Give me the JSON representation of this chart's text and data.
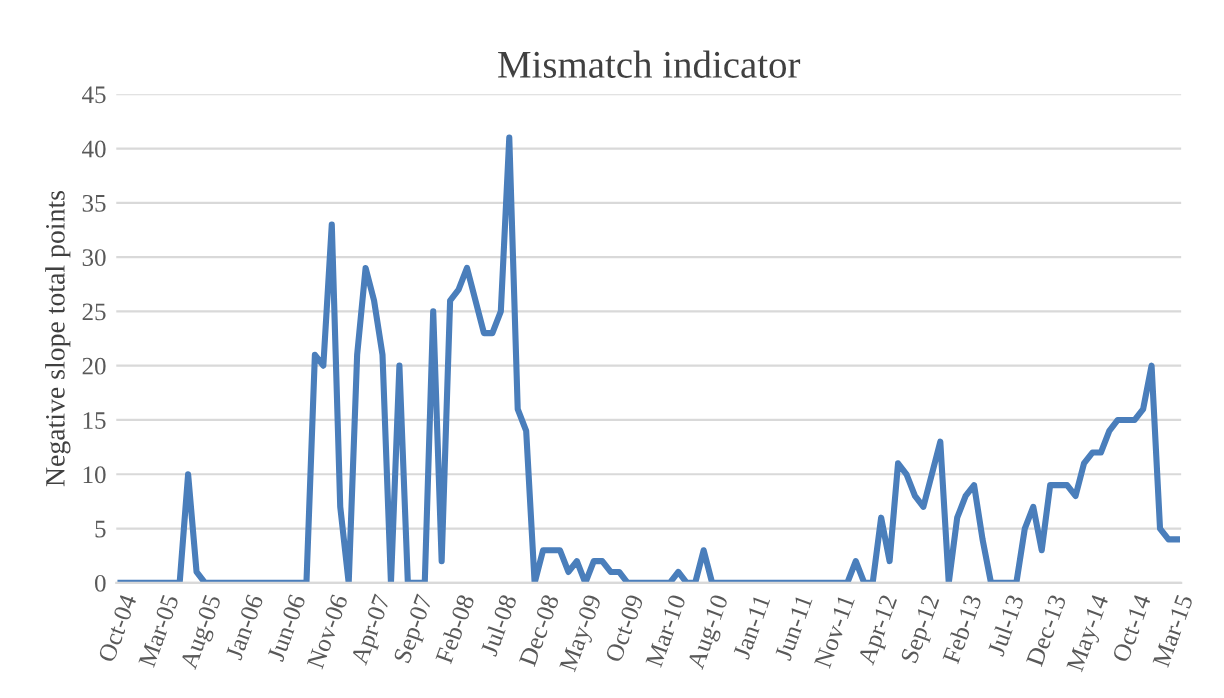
{
  "chart_data": {
    "type": "line",
    "title": "Mismatch indicator",
    "ylabel": "Negative slope total points",
    "categories": [
      "Oct-04",
      null,
      null,
      null,
      null,
      "Mar-05",
      null,
      null,
      null,
      null,
      "Aug-05",
      null,
      null,
      null,
      null,
      "Jan-06",
      null,
      null,
      null,
      null,
      "Jun-06",
      null,
      null,
      null,
      null,
      "Nov-06",
      null,
      null,
      null,
      null,
      "Apr-07",
      null,
      null,
      null,
      null,
      "Sep-07",
      null,
      null,
      null,
      null,
      "Feb-08",
      null,
      null,
      null,
      null,
      "Jul-08",
      null,
      null,
      null,
      null,
      "Dec-08",
      null,
      null,
      null,
      null,
      "May-09",
      null,
      null,
      null,
      null,
      "Oct-09",
      null,
      null,
      null,
      null,
      "Mar-10",
      null,
      null,
      null,
      null,
      "Aug-10",
      null,
      null,
      null,
      null,
      "Jan-11",
      null,
      null,
      null,
      null,
      "Jun-11",
      null,
      null,
      null,
      null,
      "Nov-11",
      null,
      null,
      null,
      null,
      "Apr-12",
      null,
      null,
      null,
      null,
      "Sep-12",
      null,
      null,
      null,
      null,
      "Feb-13",
      null,
      null,
      null,
      null,
      "Jul-13",
      null,
      null,
      null,
      null,
      "Dec-13",
      null,
      null,
      null,
      null,
      "May-14",
      null,
      null,
      null,
      null,
      "Oct-14",
      null,
      null,
      null,
      null,
      "Mar-15"
    ],
    "series": [
      {
        "color": "#4a7ebb",
        "values": [
          0,
          0,
          0,
          0,
          0,
          0,
          0,
          0,
          10,
          1,
          0,
          0,
          0,
          0,
          0,
          0,
          0,
          0,
          0,
          0,
          0,
          0,
          0,
          21,
          20,
          33,
          7,
          0,
          21,
          29,
          26,
          21,
          0,
          20,
          0,
          0,
          0,
          25,
          2,
          26,
          27,
          29,
          26,
          23,
          23,
          25,
          41,
          16,
          14,
          0,
          3,
          3,
          3,
          1,
          2,
          0,
          2,
          2,
          1,
          1,
          0,
          0,
          0,
          0,
          0,
          0,
          1,
          0,
          0,
          3,
          0,
          0,
          0,
          0,
          0,
          0,
          0,
          0,
          0,
          0,
          0,
          0,
          0,
          0,
          0,
          0,
          0,
          2,
          0,
          0,
          6,
          2,
          11,
          10,
          8,
          7,
          10,
          13,
          0,
          6,
          8,
          9,
          4,
          0,
          0,
          0,
          0,
          5,
          7,
          3,
          9,
          9,
          9,
          8,
          11,
          12,
          12,
          14,
          15,
          15,
          15,
          16,
          20,
          5,
          4,
          4
        ]
      }
    ],
    "ylim": [
      0,
      45
    ],
    "yticks": [
      0,
      5,
      10,
      15,
      20,
      25,
      30,
      35,
      40,
      45
    ],
    "grid": "y",
    "marker": "none",
    "line_style": "solid"
  }
}
